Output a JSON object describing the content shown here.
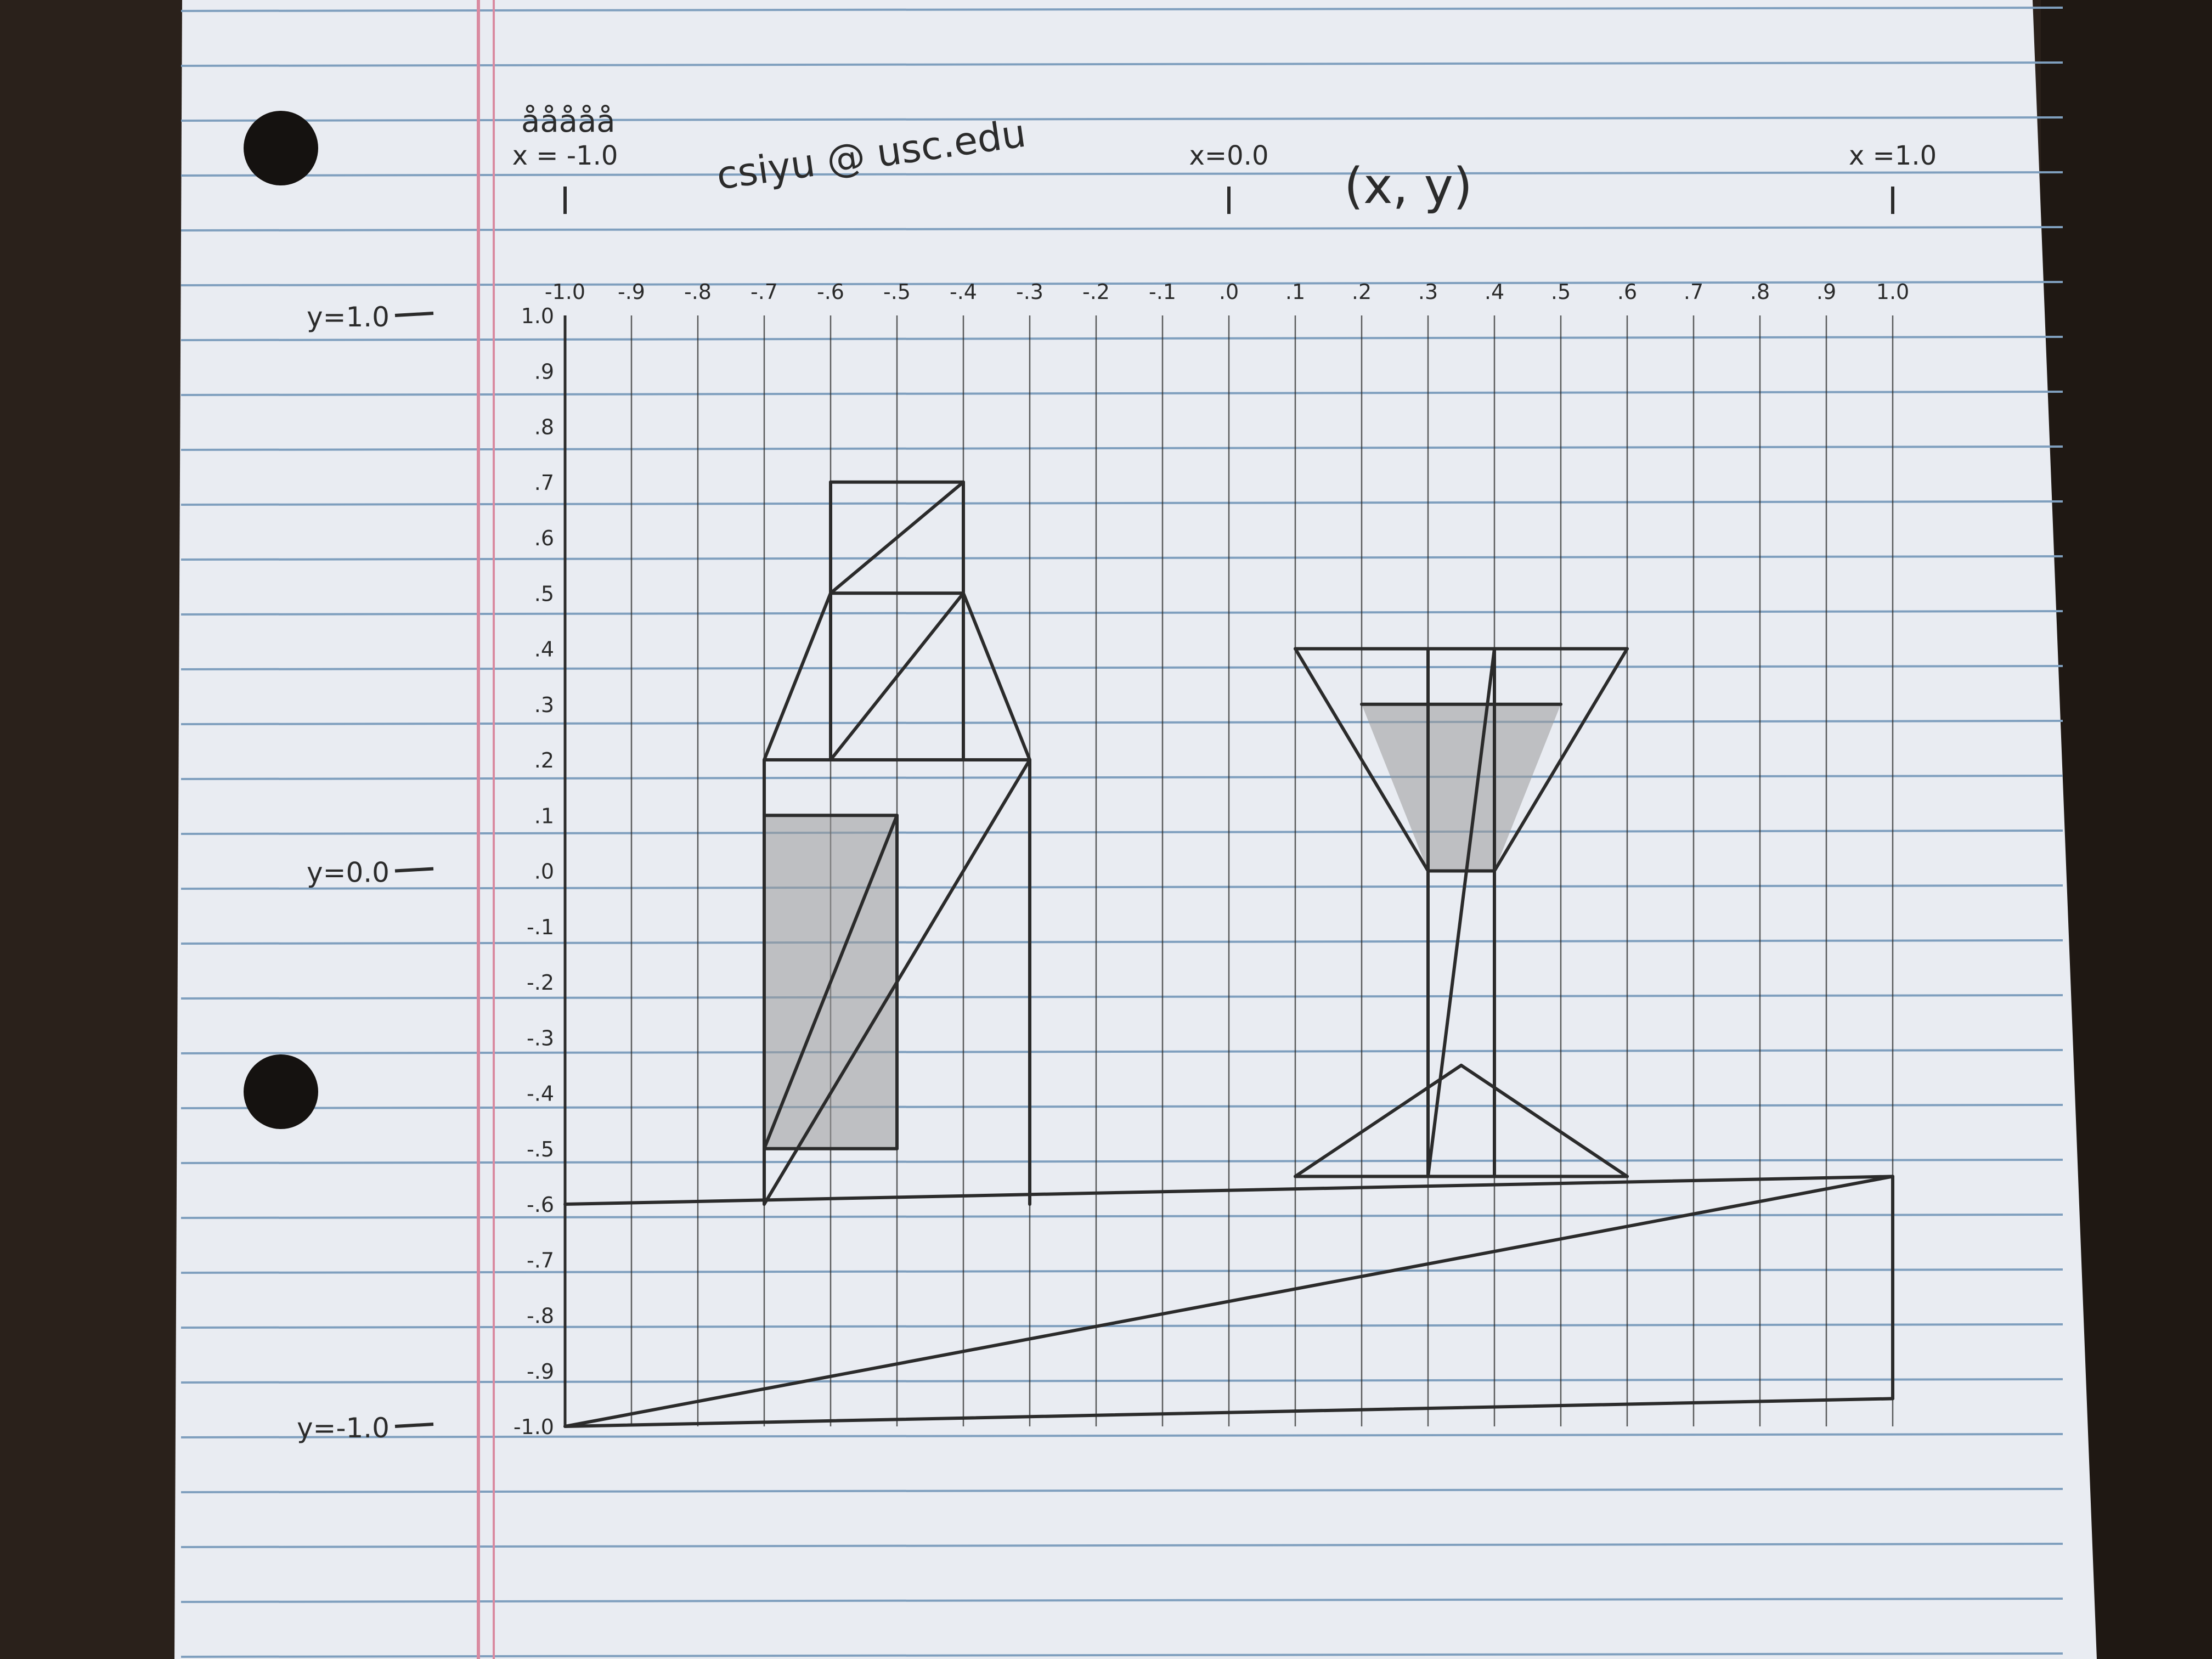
{
  "photo": {
    "subject": "",
    "colors": {
      "desk": "#2a211b",
      "paper": "#e9ecf2",
      "rule_line": "#7f9fbe",
      "margin_line": "#d98aa0",
      "pencil": "#2b2b2b",
      "shade": "#9a9a9a"
    }
  },
  "header": {
    "tally": "ååååå",
    "email": "csiyu @ usc.edu",
    "x_markers": [
      {
        "label": "x = -1.0",
        "value": -1.0
      },
      {
        "label": "x=0.0",
        "value": 0.0
      },
      {
        "label": "x =1.0",
        "value": 1.0
      }
    ],
    "coord_note": "(x, y)"
  },
  "y_markers": [
    {
      "label": "y=1.0",
      "value": 1.0
    },
    {
      "label": "y=0.0",
      "value": 0.0
    },
    {
      "label": "y=-1.0",
      "value": -1.0
    }
  ],
  "x_ticks": [
    "-1.0",
    "-.9",
    "-.8",
    "-.7",
    "-.6",
    "-.5",
    "-.4",
    "-.3",
    "-.2",
    "-.1",
    ".0",
    ".1",
    ".2",
    ".3",
    ".4",
    ".5",
    ".6",
    ".7",
    ".8",
    ".9",
    "1.0"
  ],
  "y_ticks": [
    "1.0",
    ".9",
    ".8",
    ".7",
    ".6",
    ".5",
    ".4",
    ".3",
    ".2",
    ".1",
    ".0",
    "-.1",
    "-.2",
    "-.3",
    "-.4",
    "-.5",
    "-.6",
    "-.7",
    "-.8",
    "-.9",
    "-1.0"
  ],
  "drawing": {
    "segments": [
      [
        -0.6,
        0.7,
        -0.4,
        0.7
      ],
      [
        -0.4,
        0.7,
        -0.4,
        0.5
      ],
      [
        -0.4,
        0.5,
        -0.6,
        0.5
      ],
      [
        -0.6,
        0.5,
        -0.6,
        0.7
      ],
      [
        -0.6,
        0.5,
        -0.4,
        0.7
      ],
      [
        -0.6,
        0.5,
        -0.6,
        0.2
      ],
      [
        -0.4,
        0.5,
        -0.4,
        0.2
      ],
      [
        -0.6,
        0.2,
        -0.4,
        0.2
      ],
      [
        -0.6,
        0.2,
        -0.4,
        0.5
      ],
      [
        -0.6,
        0.5,
        -0.7,
        0.2
      ],
      [
        -0.4,
        0.5,
        -0.3,
        0.2
      ],
      [
        -0.7,
        0.2,
        -0.3,
        0.2
      ],
      [
        -0.7,
        0.2,
        -0.7,
        -0.6
      ],
      [
        -0.3,
        0.2,
        -0.3,
        -0.6
      ],
      [
        -0.7,
        -0.6,
        -0.3,
        0.2
      ],
      [
        -0.7,
        0.1,
        -0.5,
        0.1
      ],
      [
        -0.5,
        0.1,
        -0.5,
        -0.5
      ],
      [
        -0.5,
        -0.5,
        -0.7,
        -0.5
      ],
      [
        -0.7,
        -0.5,
        -0.5,
        0.1
      ],
      [
        0.1,
        0.4,
        0.6,
        0.4
      ],
      [
        0.1,
        0.4,
        0.3,
        0.0
      ],
      [
        0.6,
        0.4,
        0.4,
        0.0
      ],
      [
        0.3,
        0.4,
        0.3,
        0.0
      ],
      [
        0.4,
        0.4,
        0.4,
        0.0
      ],
      [
        0.3,
        0.0,
        0.4,
        0.0
      ],
      [
        0.2,
        0.3,
        0.5,
        0.3
      ],
      [
        0.3,
        0.0,
        0.3,
        -0.55
      ],
      [
        0.4,
        0.0,
        0.4,
        -0.55
      ],
      [
        0.4,
        0.4,
        0.3,
        -0.55
      ],
      [
        0.1,
        -0.55,
        0.35,
        -0.35
      ],
      [
        0.35,
        -0.35,
        0.6,
        -0.55
      ],
      [
        0.1,
        -0.55,
        0.6,
        -0.55
      ],
      [
        -1.0,
        -0.6,
        1.0,
        -0.55
      ],
      [
        -1.0,
        -1.0,
        1.0,
        -0.95
      ],
      [
        1.0,
        -0.55,
        1.0,
        -0.95
      ],
      [
        -1.0,
        -1.0,
        1.0,
        -0.55
      ]
    ],
    "shaded": [
      [
        [
          -0.7,
          0.1
        ],
        [
          -0.5,
          0.1
        ],
        [
          -0.5,
          -0.5
        ],
        [
          -0.7,
          -0.5
        ]
      ],
      [
        [
          0.2,
          0.3
        ],
        [
          0.5,
          0.3
        ],
        [
          0.4,
          0.0
        ],
        [
          0.3,
          0.0
        ]
      ]
    ]
  }
}
